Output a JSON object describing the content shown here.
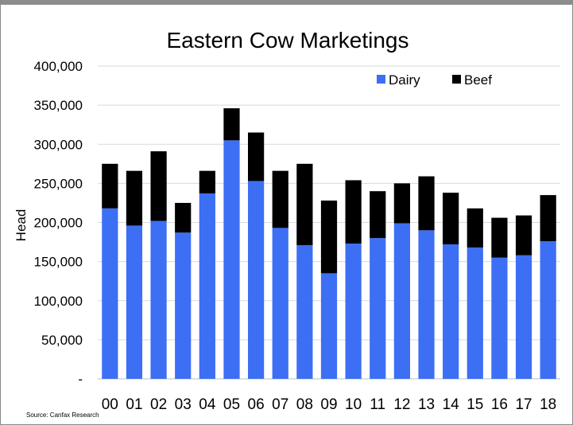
{
  "chart_data": {
    "type": "bar",
    "stacked": true,
    "title": "Eastern Cow Marketings",
    "xlabel": "",
    "ylabel": "Head",
    "ylim": [
      0,
      400000
    ],
    "yticks": [
      0,
      50000,
      100000,
      150000,
      200000,
      250000,
      300000,
      350000,
      400000
    ],
    "ytick_labels": [
      "-",
      "50,000",
      "100,000",
      "150,000",
      "200,000",
      "250,000",
      "300,000",
      "350,000",
      "400,000"
    ],
    "categories": [
      "00",
      "01",
      "02",
      "03",
      "04",
      "05",
      "06",
      "07",
      "08",
      "09",
      "10",
      "11",
      "12",
      "13",
      "14",
      "15",
      "16",
      "17",
      "18"
    ],
    "series": [
      {
        "name": "Dairy",
        "color": "#3d6ff5",
        "values": [
          218000,
          196000,
          202000,
          187000,
          237000,
          305000,
          253000,
          193000,
          171000,
          135000,
          173000,
          180000,
          199000,
          190000,
          172000,
          168000,
          155000,
          158000,
          176000
        ]
      },
      {
        "name": "Beef",
        "color": "#000000",
        "values": [
          57000,
          70000,
          89000,
          38000,
          29000,
          41000,
          62000,
          73000,
          104000,
          93000,
          81000,
          60000,
          51000,
          69000,
          66000,
          50000,
          51000,
          51000,
          59000
        ]
      }
    ],
    "grid": "horizontal",
    "legend_position": "top-right",
    "source": "Source: Canfax Research"
  }
}
